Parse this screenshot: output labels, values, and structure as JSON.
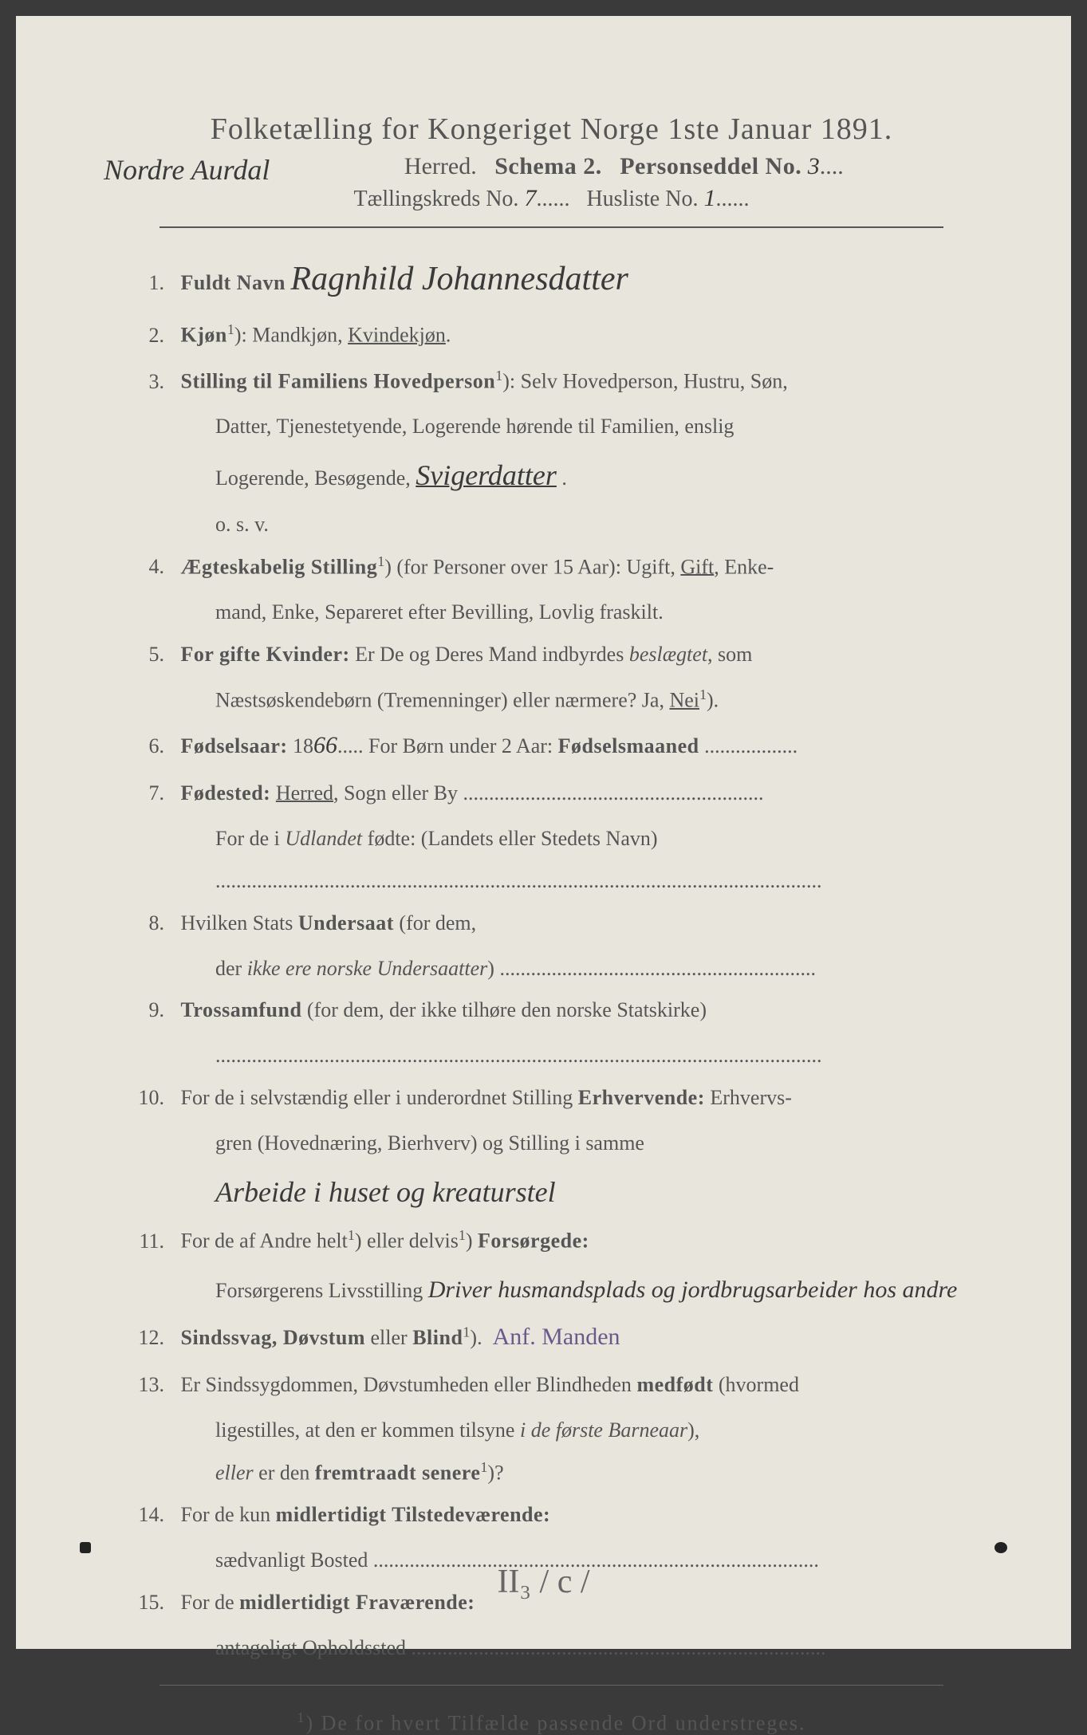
{
  "header": {
    "title": "Folketælling for Kongeriget Norge 1ste Januar 1891.",
    "herred_hw": "Nordre Aurdal",
    "herred_label": "Herred.",
    "schema_label": "Schema 2.",
    "person_label": "Personseddel No.",
    "person_no": "3",
    "kreds_label": "Tællingskreds No.",
    "kreds_no": "7",
    "husliste_label": "Husliste No.",
    "husliste_no": "1"
  },
  "fields": {
    "f1": {
      "num": "1.",
      "label": "Fuldt Navn",
      "value": "Ragnhild Johannesdatter"
    },
    "f2": {
      "num": "2.",
      "label": "Kjøn",
      "sup": "1",
      "text": ": Mandkjøn, ",
      "underlined": "Kvindekjøn",
      "tail": "."
    },
    "f3": {
      "num": "3.",
      "label": "Stilling til Familiens Hovedperson",
      "sup": "1",
      "line1": "): Selv Hovedperson, Hustru, Søn,",
      "line2": "Datter, Tjenestetyende, Logerende hørende til Familien, enslig",
      "line3a": "Logerende, Besøgende, ",
      "hw": "Svigerdatter",
      "line4": "o. s. v."
    },
    "f4": {
      "num": "4.",
      "label": "Ægteskabelig Stilling",
      "sup": "1",
      "line1": ") (for Personer over 15 Aar): Ugift, ",
      "under": "Gift",
      "tail": ", Enke-",
      "line2": "mand, Enke, Separeret efter Bevilling, Lovlig fraskilt."
    },
    "f5": {
      "num": "5.",
      "label": "For gifte Kvinder:",
      "line1": " Er De og Deres Mand indbyrdes ",
      "it1": "beslægtet",
      "tail1": ", som",
      "line2": "Næstsøskendebørn (Tremenninger) eller nærmere?  Ja, ",
      "under": "Nei",
      "sup2": "1",
      "tail2": ")."
    },
    "f6": {
      "num": "6.",
      "label": "Fødselsaar:",
      "year_prefix": " 18",
      "year_hw": "66",
      "mid": ".....  For Børn under 2 Aar: ",
      "label2": "Fødselsmaaned"
    },
    "f7": {
      "num": "7.",
      "label": "Fødested:",
      "under": "Herred",
      "tail": ", Sogn eller By",
      "line2a": "For de i ",
      "it": "Udlandet",
      "line2b": " fødte: (Landets eller Stedets Navn)"
    },
    "f8": {
      "num": "8.",
      "line1a": "Hvilken Stats ",
      "bold": "Undersaat",
      "line1b": " (for dem,",
      "line2a": "der ",
      "it": "ikke ere norske Undersaatter",
      "line2b": ")"
    },
    "f9": {
      "num": "9.",
      "label": "Trossamfund",
      "text": " (for dem, der ikke tilhøre den norske Statskirke)"
    },
    "f10": {
      "num": "10.",
      "line1a": "For de i selvstændig eller i underordnet Stilling ",
      "bold": "Erhvervende:",
      "line1b": " Erhvervs-",
      "line2": "gren (Hovednæring, Bierhverv) og Stilling i samme",
      "hw": "Arbeide i huset og kreaturstel"
    },
    "f11": {
      "num": "11.",
      "line1a": "For de af Andre helt",
      "sup1": "1",
      "mid": ") eller delvis",
      "sup2": "1",
      "line1b": ") ",
      "bold": "Forsørgede:",
      "line2": "Forsørgerens Livsstilling",
      "hw": "Driver husmandsplads og jordbrugsarbeider hos andre"
    },
    "f12": {
      "num": "12.",
      "label": "Sindssvag, Døvstum",
      "mid": " eller ",
      "label2": "Blind",
      "sup": "1",
      "tail": ").",
      "purple": "Anf. Manden"
    },
    "f13": {
      "num": "13.",
      "line1": "Er Sindssygdommen, Døvstumheden eller Blindheden ",
      "bold": "medfødt",
      "tail1": " (hvormed",
      "line2a": "ligestilles, at den er kommen tilsyne ",
      "it": "i de første Barneaar",
      "tail2": "),",
      "line3a": "eller",
      "line3b": " er den ",
      "bold3": "fremtraadt senere",
      "sup": "1",
      "tail3": ")?"
    },
    "f14": {
      "num": "14.",
      "line1a": "For de kun ",
      "bold": "midlertidigt Tilstedeværende:",
      "line2": "sædvanligt Bosted"
    },
    "f15": {
      "num": "15.",
      "line1a": "For de ",
      "bold": "midlertidigt Fraværende:",
      "line2": "antageligt Opholdssted"
    }
  },
  "footnote": {
    "sup": "1",
    "text": ") De for hvert Tilfælde passende Ord understreges."
  },
  "bottom": "II₃ / c /",
  "colors": {
    "paper": "#e8e6dc",
    "print": "#555555",
    "handwriting": "#3a3a3a",
    "purple_ink": "#6a5a8a"
  }
}
